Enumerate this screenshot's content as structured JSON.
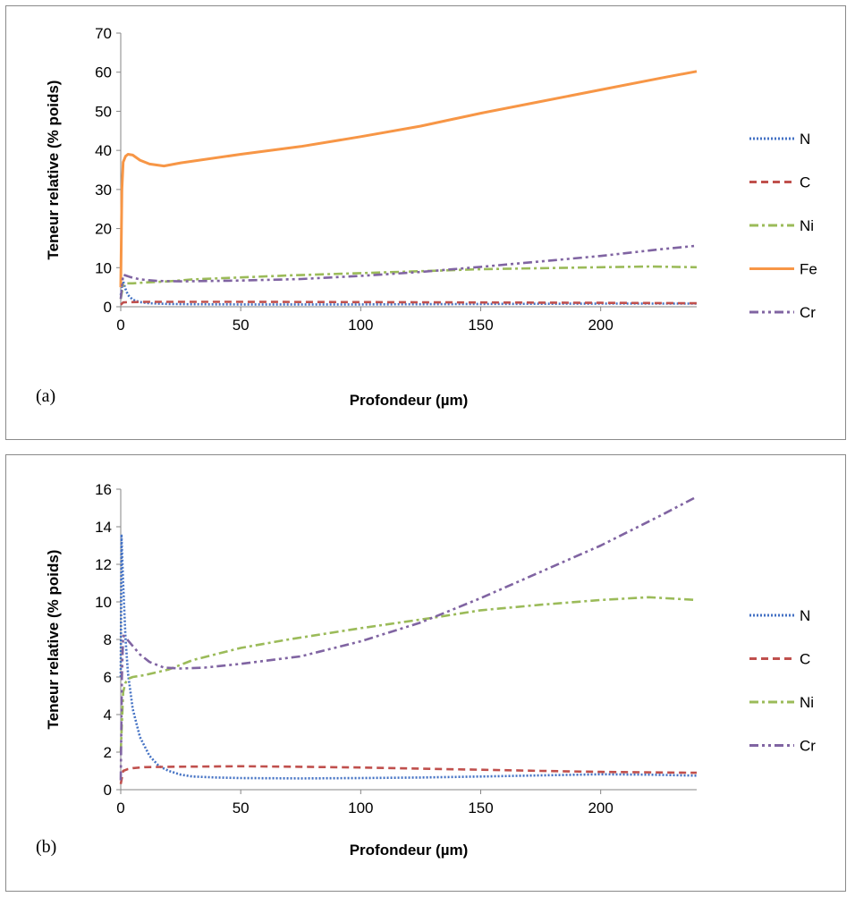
{
  "chart_data": [
    {
      "type": "line",
      "panel_label": "(a)",
      "xlabel": "Profondeur (µm)",
      "ylabel": "Teneur relative (% poids)",
      "xlim": [
        0,
        240
      ],
      "ylim": [
        0,
        70
      ],
      "xticks": [
        0,
        50,
        100,
        150,
        200
      ],
      "yticks": [
        0,
        10,
        20,
        30,
        40,
        50,
        60,
        70
      ],
      "grid": false,
      "legend_position": "right",
      "series": [
        {
          "name": "N",
          "color": "#4472c4",
          "dash": "dotted",
          "x": [
            0,
            0.5,
            1,
            2,
            3,
            5,
            8,
            12,
            20,
            30,
            50,
            100,
            150,
            200,
            240
          ],
          "y": [
            3,
            5,
            6.5,
            4.5,
            3,
            1.8,
            1.2,
            0.9,
            0.7,
            0.65,
            0.6,
            0.6,
            0.7,
            0.8,
            0.8
          ]
        },
        {
          "name": "C",
          "color": "#c0504d",
          "dash": "dashed",
          "x": [
            0,
            1,
            3,
            5,
            10,
            50,
            100,
            150,
            200,
            240
          ],
          "y": [
            0.5,
            1.1,
            1.2,
            1.2,
            1.25,
            1.25,
            1.2,
            1.1,
            1.0,
            0.9
          ]
        },
        {
          "name": "Ni",
          "color": "#9bbb59",
          "dash": "dashdot",
          "x": [
            0,
            1,
            2,
            5,
            10,
            20,
            30,
            50,
            70,
            100,
            130,
            150,
            200,
            220,
            240
          ],
          "y": [
            2,
            5.5,
            6.0,
            6.0,
            6.2,
            6.5,
            7.0,
            7.5,
            8.0,
            8.6,
            9.2,
            9.6,
            10.1,
            10.3,
            10.1
          ]
        },
        {
          "name": "Fe",
          "color": "#f79646",
          "dash": "solid",
          "x": [
            0,
            0.5,
            1,
            2,
            3,
            5,
            8,
            12,
            18,
            25,
            50,
            75,
            100,
            125,
            150,
            175,
            200,
            225,
            240
          ],
          "y": [
            5,
            30,
            37,
            38.5,
            39,
            38.8,
            37.5,
            36.5,
            36,
            36.8,
            39,
            41,
            43.5,
            46.2,
            49.5,
            52.5,
            55.5,
            58.5,
            60.2
          ]
        },
        {
          "name": "Cr",
          "color": "#8064a2",
          "dash": "dashdotdot",
          "x": [
            0,
            1,
            2,
            4,
            8,
            15,
            25,
            50,
            75,
            100,
            125,
            150,
            175,
            200,
            225,
            240
          ],
          "y": [
            2,
            8.2,
            8.0,
            7.6,
            7.0,
            6.6,
            6.5,
            6.7,
            7.1,
            7.9,
            8.9,
            10.2,
            11.6,
            13.0,
            14.7,
            15.6
          ]
        }
      ]
    },
    {
      "type": "line",
      "panel_label": "(b)",
      "xlabel": "Profondeur (µm)",
      "ylabel": "Teneur relative (% poids)",
      "xlim": [
        0,
        240
      ],
      "ylim": [
        0,
        16
      ],
      "xticks": [
        0,
        50,
        100,
        150,
        200
      ],
      "yticks": [
        0,
        2,
        4,
        6,
        8,
        10,
        12,
        14,
        16
      ],
      "grid": false,
      "legend_position": "right",
      "series": [
        {
          "name": "N",
          "color": "#4472c4",
          "dash": "dotted",
          "x": [
            0,
            0.3,
            1,
            2,
            3,
            5,
            8,
            12,
            16,
            20,
            25,
            30,
            40,
            50,
            75,
            100,
            125,
            150,
            175,
            200,
            220,
            240
          ],
          "y": [
            6,
            13.6,
            11,
            8,
            6.2,
            4.3,
            2.8,
            1.8,
            1.25,
            1.0,
            0.8,
            0.7,
            0.65,
            0.62,
            0.6,
            0.62,
            0.65,
            0.7,
            0.76,
            0.82,
            0.8,
            0.75
          ]
        },
        {
          "name": "C",
          "color": "#c0504d",
          "dash": "dashed",
          "x": [
            0,
            1,
            3,
            5,
            10,
            20,
            50,
            75,
            100,
            125,
            150,
            175,
            200,
            240
          ],
          "y": [
            0.3,
            1.0,
            1.1,
            1.15,
            1.2,
            1.22,
            1.25,
            1.22,
            1.18,
            1.12,
            1.06,
            1.0,
            0.95,
            0.9
          ]
        },
        {
          "name": "Ni",
          "color": "#9bbb59",
          "dash": "dashdot",
          "x": [
            0,
            1,
            2,
            3,
            5,
            10,
            20,
            30,
            50,
            70,
            100,
            130,
            150,
            175,
            200,
            220,
            240
          ],
          "y": [
            2,
            5.2,
            5.7,
            5.9,
            6.0,
            6.1,
            6.4,
            6.9,
            7.55,
            8.0,
            8.6,
            9.15,
            9.55,
            9.85,
            10.1,
            10.25,
            10.1
          ]
        },
        {
          "name": "Cr",
          "color": "#8064a2",
          "dash": "dashdotdot",
          "x": [
            0,
            0.5,
            1,
            2,
            4,
            8,
            12,
            18,
            25,
            35,
            50,
            75,
            100,
            125,
            150,
            175,
            200,
            225,
            240
          ],
          "y": [
            0.5,
            6,
            8.2,
            8.1,
            7.8,
            7.2,
            6.8,
            6.5,
            6.45,
            6.5,
            6.7,
            7.1,
            7.9,
            8.9,
            10.2,
            11.6,
            13.0,
            14.6,
            15.6
          ]
        }
      ]
    }
  ]
}
